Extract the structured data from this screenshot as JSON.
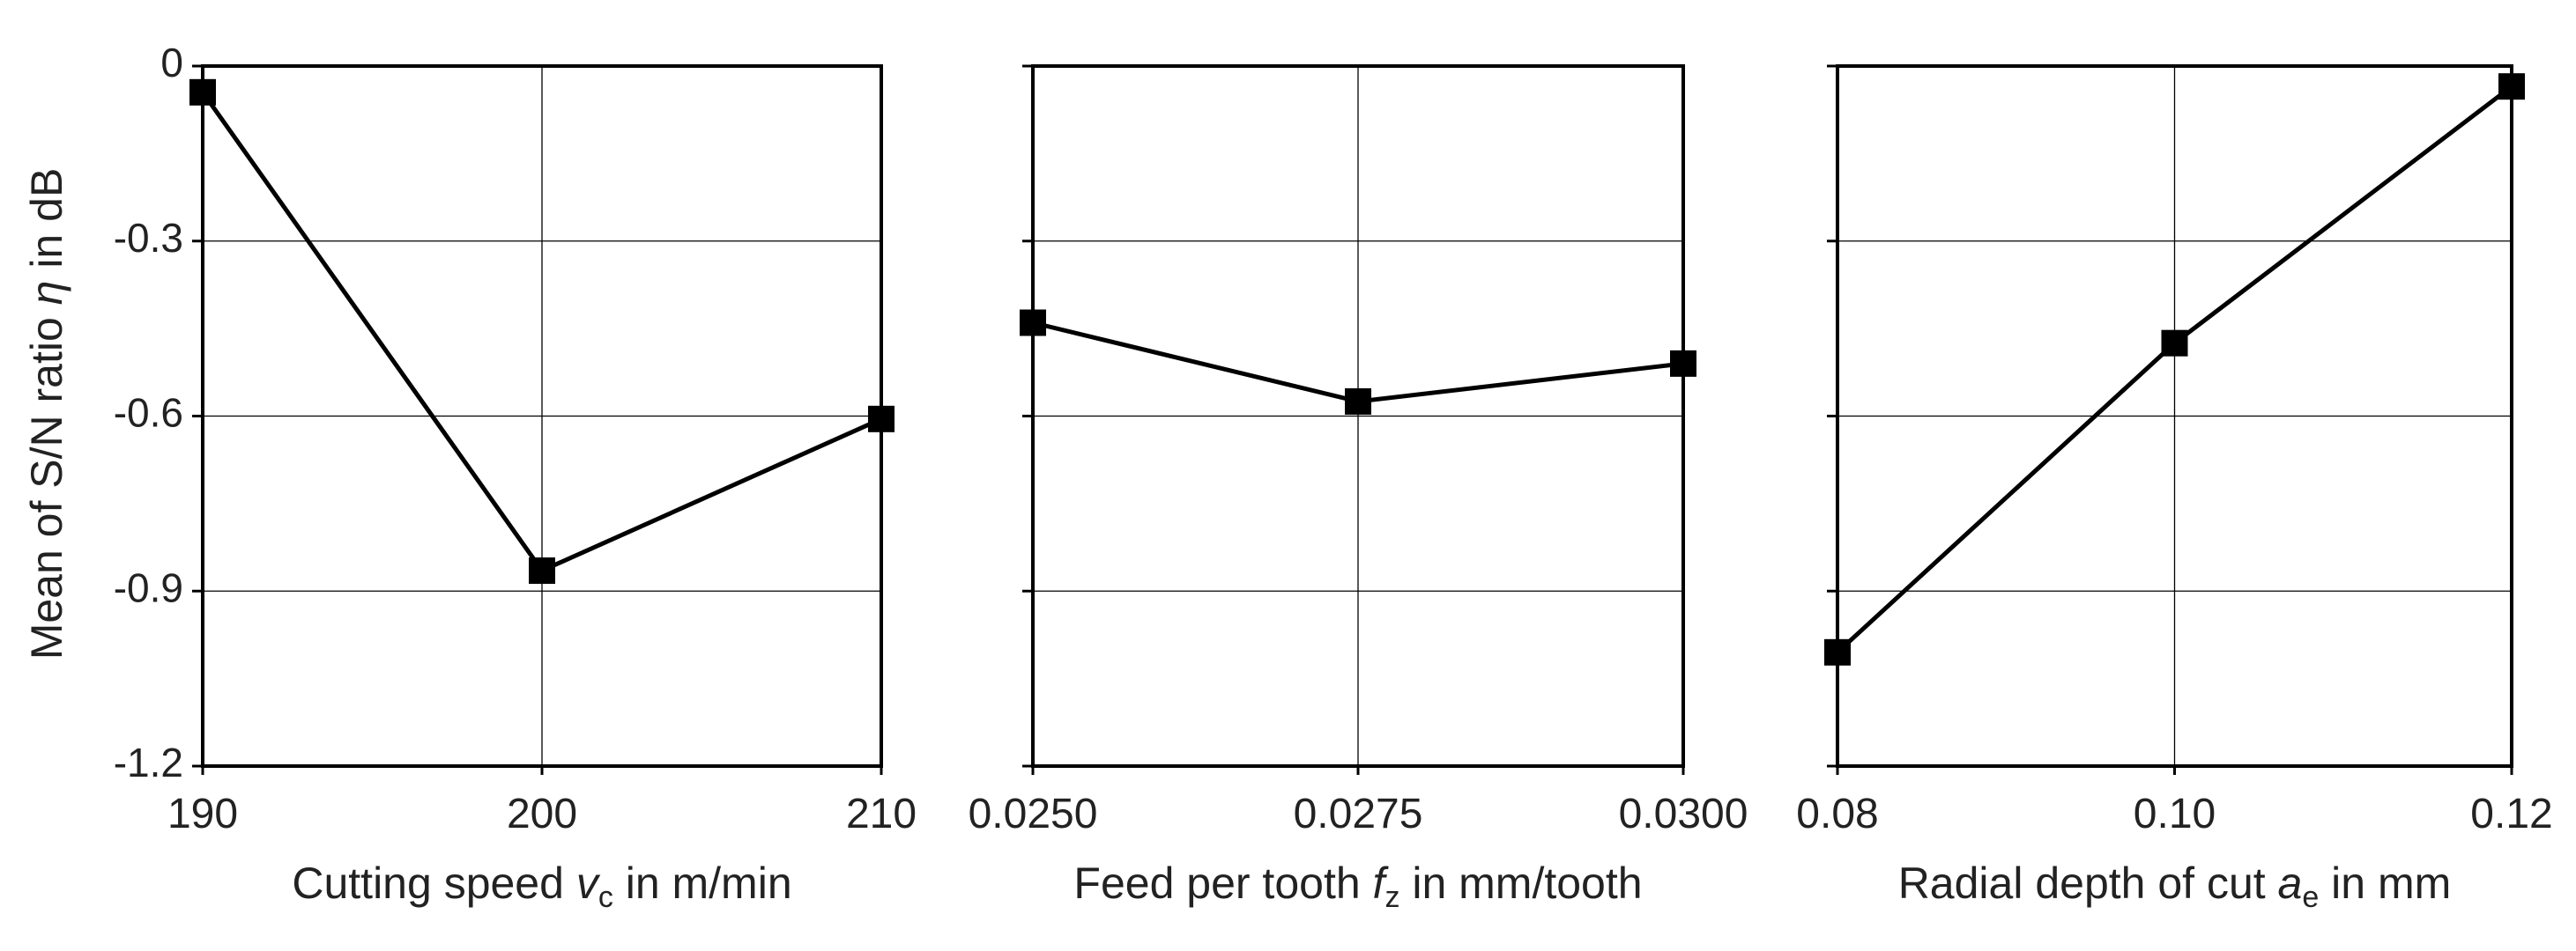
{
  "chart_data": [
    {
      "type": "line",
      "y_axis_label": {
        "pre": "Mean of S/N ratio ",
        "var": "η",
        "post": " in dB"
      },
      "x_axis_label": {
        "pre": "Cutting speed ",
        "var": "v",
        "sub": "c",
        "post": " in m/min"
      },
      "ylim": [
        -1.2,
        0
      ],
      "yticks": [
        0,
        -0.3,
        -0.6,
        -0.9,
        -1.2
      ],
      "ytick_labels": [
        "0",
        "-0.3",
        "-0.6",
        "-0.9",
        "-1.2"
      ],
      "x": [
        190,
        200,
        210
      ],
      "xtick_labels": [
        "190",
        "200",
        "210"
      ],
      "values": [
        -0.045,
        -0.865,
        -0.605
      ]
    },
    {
      "type": "line",
      "x_axis_label": {
        "pre": "Feed per tooth ",
        "var": "f",
        "sub": "z",
        "post": " in mm/tooth"
      },
      "ylim": [
        -1.2,
        0
      ],
      "yticks": [
        0,
        -0.3,
        -0.6,
        -0.9,
        -1.2
      ],
      "x": [
        0.025,
        0.0275,
        0.03
      ],
      "xtick_labels": [
        "0.0250",
        "0.0275",
        "0.0300"
      ],
      "values": [
        -0.44,
        -0.575,
        -0.51
      ]
    },
    {
      "type": "line",
      "x_axis_label": {
        "pre": "Radial depth of cut ",
        "var": "a",
        "sub": "e",
        "post": " in mm"
      },
      "ylim": [
        -1.2,
        0
      ],
      "yticks": [
        0,
        -0.3,
        -0.6,
        -0.9,
        -1.2
      ],
      "x": [
        0.08,
        0.1,
        0.12
      ],
      "xtick_labels": [
        "0.08",
        "0.10",
        "0.12"
      ],
      "values": [
        -1.005,
        -0.475,
        -0.035
      ]
    }
  ]
}
